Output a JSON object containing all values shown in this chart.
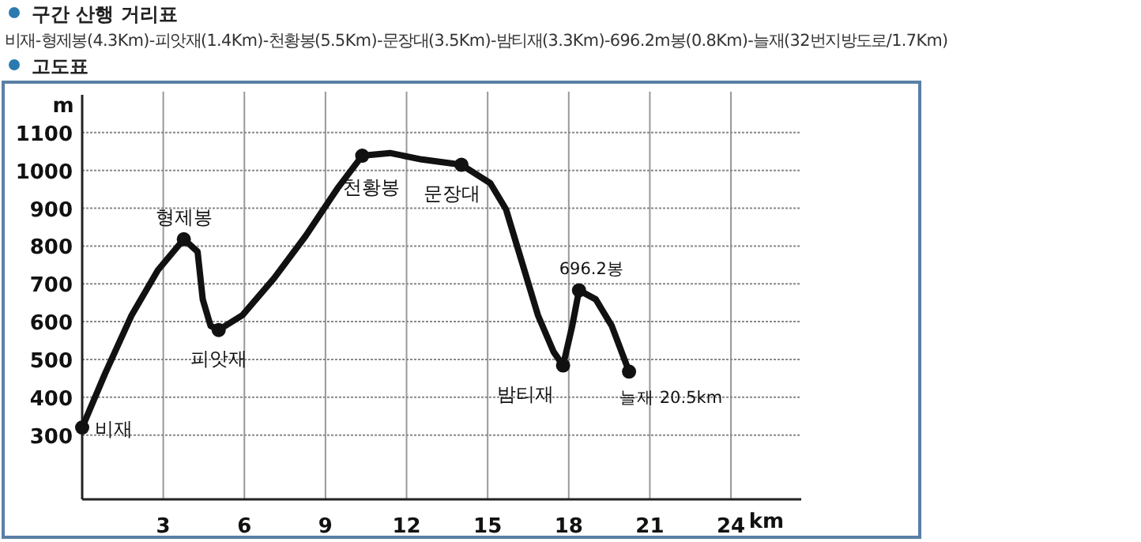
{
  "chart_data": {
    "type": "line",
    "title": "구간 산행 거리표",
    "subtitle": "비재-형제봉(4.3Km)-피앗재(1.4Km)-천황봉(5.5Km)-문장대(3.5Km)-밤티재(3.3Km)-696.2m봉(0.8Km)-늘재(32번지방도로/1.7Km)",
    "xlabel": "km",
    "ylabel": "m",
    "xlim": [
      0,
      26.6
    ],
    "ylim": [
      130,
      1200
    ],
    "xticks": [
      3,
      6,
      9,
      12,
      15,
      18,
      21,
      24
    ],
    "yticks": [
      300,
      400,
      500,
      600,
      700,
      800,
      900,
      1000,
      1100
    ],
    "grid": true,
    "series": [
      {
        "type": "line",
        "color": "#111111",
        "marker": "none",
        "line_style": "solid",
        "x": [
          0,
          0.85,
          1.83,
          2.8,
          3.76,
          4.27,
          4.46,
          4.75,
          5.05,
          5.93,
          7.1,
          8.27,
          9.44,
          10.36,
          11.39,
          12.56,
          14.03,
          15.1,
          15.68,
          16.27,
          16.86,
          17.44,
          17.79,
          18.13,
          18.38,
          19.0,
          19.59,
          20.23
        ],
        "values": [
          320,
          463,
          617,
          736,
          818,
          785,
          659,
          589,
          578,
          617,
          715,
          827,
          952,
          1039,
          1046,
          1029,
          1015,
          966,
          897,
          757,
          617,
          520,
          484,
          589,
          683,
          659,
          589,
          468
        ]
      },
      {
        "type": "scatter",
        "color": "#111111",
        "marker": "circle",
        "x": [
          0,
          3.76,
          5.05,
          10.36,
          14.03,
          17.79,
          18.38,
          20.23
        ],
        "values": [
          320,
          818,
          578,
          1039,
          1015,
          484,
          683,
          468
        ]
      }
    ],
    "annotations": [
      "고도표",
      {
        "text": "비재",
        "x": 0,
        "y": 320
      },
      {
        "text": "형제봉",
        "x": 3.76,
        "y": 818
      },
      {
        "text": "피앗재",
        "x": 5.05,
        "y": 578
      },
      {
        "text": "천황봉",
        "x": 10.36,
        "y": 1039
      },
      {
        "text": "문장대",
        "x": 14.03,
        "y": 1015
      },
      {
        "text": "밤티재",
        "x": 17.79,
        "y": 484
      },
      {
        "text": "696.2봉",
        "x": 18.38,
        "y": 683
      },
      {
        "text": "늘재 20.5km",
        "x": 20.23,
        "y": 468
      }
    ]
  }
}
